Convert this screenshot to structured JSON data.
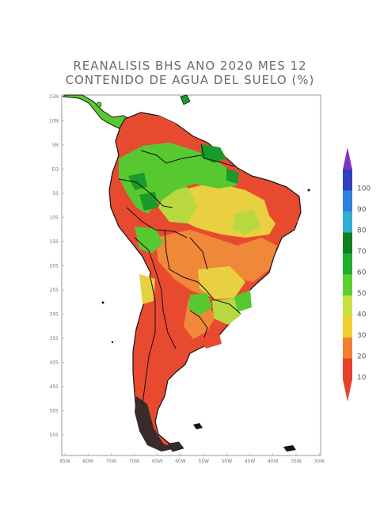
{
  "title": {
    "line1": "REANALISIS BHS ANO 2020 MES 12",
    "line2": "CONTENIDO DE AGUA DEL SUELO (%)"
  },
  "lat_ticks": [
    "15N",
    "10N",
    "5N",
    "EQ",
    "5S",
    "10S",
    "15S",
    "20S",
    "25S",
    "30S",
    "35S",
    "40S",
    "45S",
    "50S",
    "55S"
  ],
  "lon_ticks": [
    "85W",
    "80W",
    "75W",
    "70W",
    "65W",
    "60W",
    "55W",
    "50W",
    "45W",
    "40W",
    "35W",
    "30W"
  ],
  "colorbar": {
    "labels": [
      "10",
      "20",
      "30",
      "40",
      "50",
      "60",
      "70",
      "80",
      "90",
      "100"
    ],
    "colors": [
      "#e8402a",
      "#f08030",
      "#f0d030",
      "#c8e040",
      "#5cd030",
      "#20b030",
      "#108020",
      "#30b0d0",
      "#3080e0",
      "#3040c0"
    ],
    "low_arrow_color": "#e8402a",
    "high_arrow_color": "#8030c0"
  },
  "map_colors": {
    "dry": "#e84a30",
    "orange": "#f0883a",
    "yellow": "#e8d040",
    "yellowgreen": "#b8d840",
    "green": "#58c830",
    "darkgreen": "#1a9a2a",
    "border": "#111111"
  }
}
